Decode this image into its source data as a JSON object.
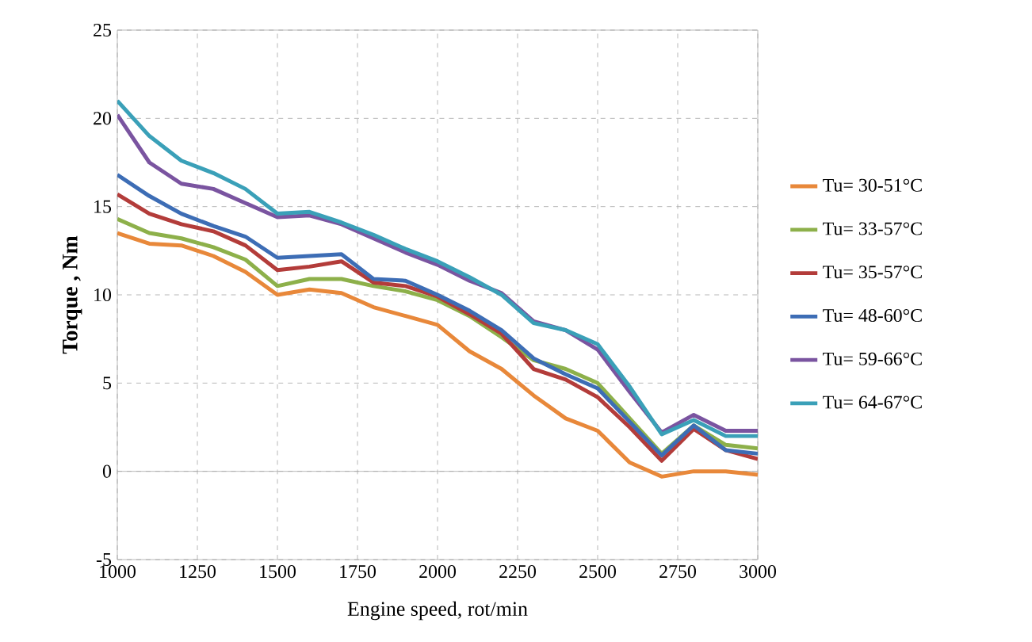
{
  "chart_data": {
    "type": "line",
    "xlabel": "Engine speed, rot/min",
    "ylabel": "Torque , Nm",
    "x": [
      1000,
      1100,
      1200,
      1300,
      1400,
      1500,
      1600,
      1700,
      1800,
      1900,
      2000,
      2100,
      2200,
      2300,
      2400,
      2500,
      2600,
      2700,
      2800,
      2900,
      3000
    ],
    "series": [
      {
        "name": "Tu= 30-51°C",
        "color": "#e8883a",
        "values": [
          13.5,
          12.9,
          12.8,
          12.2,
          11.3,
          10.0,
          10.3,
          10.1,
          9.3,
          8.8,
          8.3,
          6.8,
          5.8,
          4.3,
          3.0,
          2.3,
          0.5,
          -0.3,
          0.0,
          0.0,
          -0.2
        ]
      },
      {
        "name": "Tu= 33-57°C",
        "color": "#8db04a",
        "values": [
          14.3,
          13.5,
          13.2,
          12.7,
          12.0,
          10.5,
          10.9,
          10.9,
          10.5,
          10.2,
          9.7,
          8.8,
          7.6,
          6.3,
          5.8,
          5.0,
          3.0,
          1.0,
          2.6,
          1.5,
          1.3
        ]
      },
      {
        "name": "Tu= 35-57°C",
        "color": "#b33c3a",
        "values": [
          15.7,
          14.6,
          14.0,
          13.6,
          12.8,
          11.4,
          11.6,
          11.9,
          10.7,
          10.5,
          9.9,
          8.9,
          7.8,
          5.8,
          5.2,
          4.2,
          2.5,
          0.6,
          2.4,
          1.2,
          0.7
        ]
      },
      {
        "name": "Tu= 48-60°C",
        "color": "#3d6db5",
        "values": [
          16.8,
          15.6,
          14.6,
          13.9,
          13.3,
          12.1,
          12.2,
          12.3,
          10.9,
          10.8,
          10.0,
          9.1,
          8.0,
          6.4,
          5.5,
          4.7,
          2.8,
          0.9,
          2.6,
          1.2,
          1.0
        ]
      },
      {
        "name": "Tu= 59-66°C",
        "color": "#7a54a0",
        "values": [
          20.2,
          17.5,
          16.3,
          16.0,
          15.2,
          14.4,
          14.5,
          14.0,
          13.2,
          12.4,
          11.7,
          10.8,
          10.1,
          8.5,
          8.0,
          6.9,
          4.5,
          2.2,
          3.2,
          2.3,
          2.3
        ]
      },
      {
        "name": "Tu= 64-67°C",
        "color": "#3aa0b8",
        "values": [
          21.0,
          19.0,
          17.6,
          16.9,
          16.0,
          14.6,
          14.7,
          14.1,
          13.4,
          12.6,
          11.9,
          11.0,
          10.0,
          8.4,
          8.0,
          7.2,
          4.8,
          2.1,
          2.9,
          2.0,
          2.0
        ]
      }
    ],
    "xlim": [
      1000,
      3000
    ],
    "xticks": [
      1000,
      1250,
      1500,
      1750,
      2000,
      2250,
      2500,
      2750,
      3000
    ],
    "ylim": [
      -5,
      25
    ],
    "yticks": [
      -5,
      0,
      5,
      10,
      15,
      20,
      25
    ],
    "grid": true,
    "legend": "right",
    "marker": "none",
    "line_style": "solid"
  }
}
